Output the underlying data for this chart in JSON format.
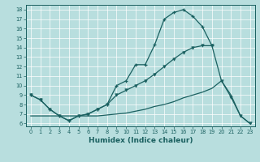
{
  "xlabel": "Humidex (Indice chaleur)",
  "background_color": "#b8dede",
  "grid_color": "#ffffff",
  "line_color": "#1a6060",
  "xlim": [
    -0.5,
    23.5
  ],
  "ylim": [
    5.7,
    18.5
  ],
  "yticks": [
    6,
    7,
    8,
    9,
    10,
    11,
    12,
    13,
    14,
    15,
    16,
    17,
    18
  ],
  "xticks": [
    0,
    1,
    2,
    3,
    4,
    5,
    6,
    7,
    8,
    9,
    10,
    11,
    12,
    13,
    14,
    15,
    16,
    17,
    18,
    19,
    20,
    21,
    22,
    23
  ],
  "line1_x": [
    0,
    1,
    2,
    3,
    4,
    5,
    6,
    7,
    8,
    9,
    10,
    11,
    12,
    13,
    14,
    15,
    16,
    17,
    18,
    19
  ],
  "line1_y": [
    9.0,
    8.5,
    7.5,
    6.8,
    6.3,
    6.8,
    7.0,
    7.5,
    8.0,
    10.0,
    10.5,
    12.2,
    12.2,
    14.3,
    17.0,
    17.7,
    18.0,
    17.3,
    16.2,
    14.2
  ],
  "line2_x": [
    0,
    1,
    2,
    3,
    4,
    5,
    6,
    7,
    8,
    9,
    10,
    11,
    12,
    13,
    14,
    15,
    16,
    17,
    18,
    19,
    20,
    21,
    22,
    23
  ],
  "line2_y": [
    9.0,
    8.5,
    7.5,
    6.8,
    6.3,
    6.8,
    7.0,
    7.5,
    8.0,
    9.0,
    9.5,
    10.0,
    10.5,
    11.2,
    12.0,
    12.8,
    13.5,
    14.0,
    14.2,
    14.2,
    10.5,
    8.8,
    6.8,
    6.0
  ],
  "line3_x": [
    0,
    1,
    2,
    3,
    4,
    5,
    6,
    7,
    8,
    9,
    10,
    11,
    12,
    13,
    14,
    15,
    16,
    17,
    18,
    19,
    20,
    21,
    22,
    23
  ],
  "line3_y": [
    6.8,
    6.8,
    6.8,
    6.8,
    6.8,
    6.8,
    6.8,
    6.8,
    6.9,
    7.0,
    7.1,
    7.3,
    7.5,
    7.8,
    8.0,
    8.3,
    8.7,
    9.0,
    9.3,
    9.7,
    10.5,
    9.0,
    6.8,
    6.0
  ]
}
